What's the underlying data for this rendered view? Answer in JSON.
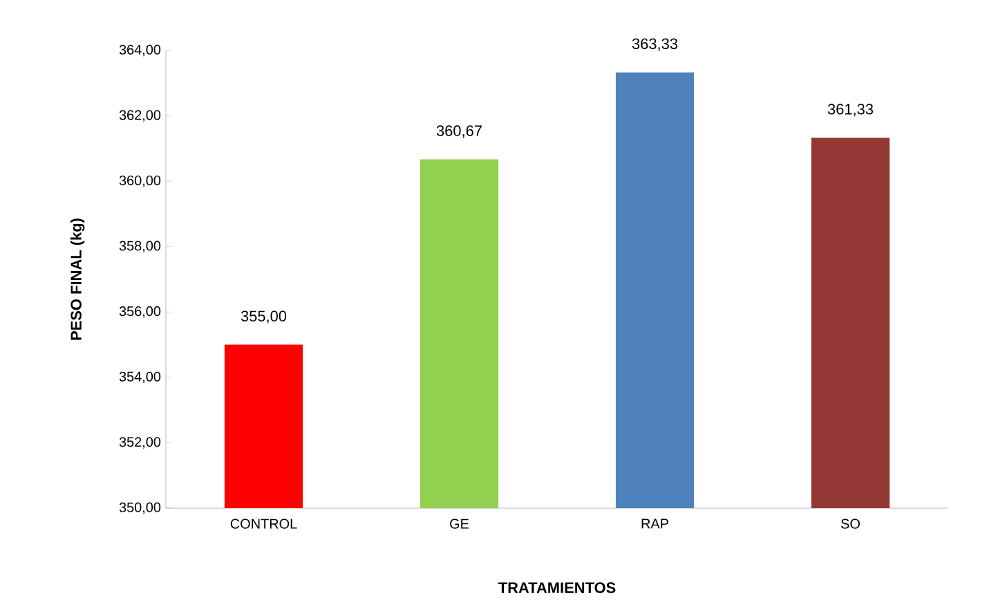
{
  "chart_data": {
    "type": "bar",
    "xlabel": "TRATAMIENTOS",
    "ylabel": "PESO FINAL (kg)",
    "categories": [
      "CONTROL",
      "GE",
      "RAP",
      "SO"
    ],
    "values": [
      355.0,
      360.67,
      363.33,
      361.33
    ],
    "colors": [
      "#ff0000",
      "#92d050",
      "#4f81bd",
      "#943634"
    ],
    "value_labels": [
      "355,00",
      "360,67",
      "363,33",
      "361,33"
    ],
    "ylim": [
      350,
      364
    ],
    "yticks": [
      {
        "value": 350,
        "label": "350,00"
      },
      {
        "value": 352,
        "label": "352,00"
      },
      {
        "value": 354,
        "label": "354,00"
      },
      {
        "value": 356,
        "label": "356,00"
      },
      {
        "value": 358,
        "label": "358,00"
      },
      {
        "value": 360,
        "label": "360,00"
      },
      {
        "value": 362,
        "label": "362,00"
      },
      {
        "value": 364,
        "label": "364,00"
      }
    ],
    "grid": false
  }
}
